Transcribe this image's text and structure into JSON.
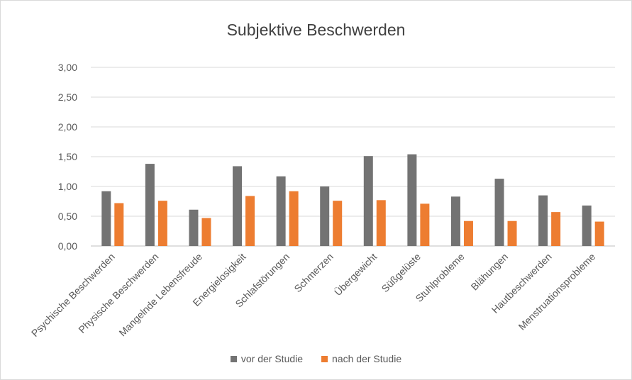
{
  "chart_data": {
    "type": "bar",
    "title": "Subjektive Beschwerden",
    "categories": [
      "Psychische Beschwerden",
      "Physische Beschwerden",
      "Mangelnde Lebensfreude",
      "Energielosigkeit",
      "Schlafstörungen",
      "Schmerzen",
      "Übergewicht",
      "Süßgelüste",
      "Stuhlprobleme",
      "Blähungen",
      "Hautbeschwerden",
      "Menstruationsprobleme"
    ],
    "series": [
      {
        "name": "vor der Studie",
        "color": "#737373",
        "values": [
          0.92,
          1.38,
          0.61,
          1.34,
          1.17,
          1.0,
          1.51,
          1.54,
          0.83,
          1.13,
          0.85,
          0.68
        ]
      },
      {
        "name": "nach der Studie",
        "color": "#ED7D31",
        "values": [
          0.72,
          0.76,
          0.47,
          0.84,
          0.92,
          0.76,
          0.77,
          0.71,
          0.42,
          0.42,
          0.57,
          0.41
        ]
      }
    ],
    "ylim": [
      0,
      3
    ],
    "yticks": [
      "0,00",
      "0,50",
      "1,00",
      "1,50",
      "2,00",
      "2,50",
      "3,00"
    ],
    "grid": true,
    "legend_position": "bottom",
    "xlabel": "",
    "ylabel": ""
  }
}
